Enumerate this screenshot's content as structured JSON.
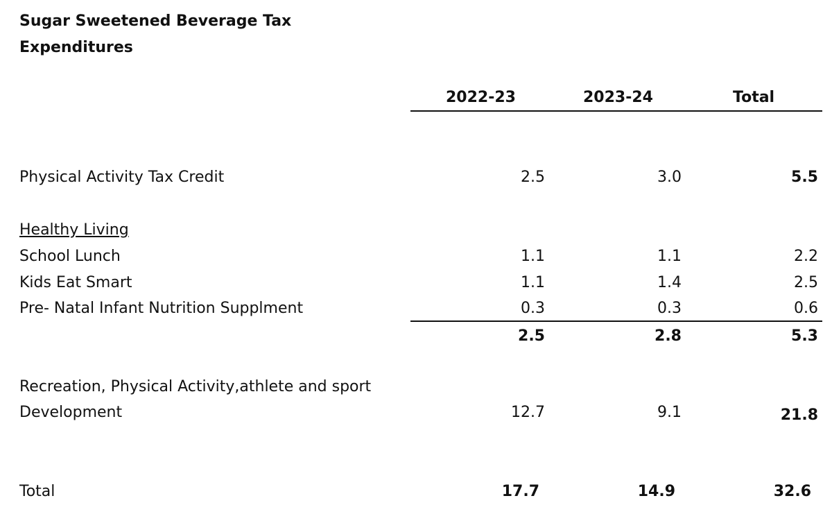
{
  "title": {
    "line1": "Sugar Sweetened Beverage Tax",
    "line2": "Expenditures"
  },
  "columns": [
    "2022-23",
    "2023-24",
    "Total"
  ],
  "rows": {
    "physical_activity": {
      "label": "Physical Activity Tax Credit",
      "v1": "2.5",
      "v2": "3.0",
      "total": "5.5"
    },
    "healthy_living_heading": "Healthy Living",
    "school_lunch": {
      "label": "School Lunch",
      "v1": "1.1",
      "v2": "1.1",
      "total": "2.2"
    },
    "kids_eat_smart": {
      "label": "Kids Eat Smart",
      "v1": "1.1",
      "v2": "1.4",
      "total": "2.5"
    },
    "prenatal": {
      "label": "Pre- Natal Infant Nutrition Supplment",
      "v1": "0.3",
      "v2": "0.3",
      "total": "0.6"
    },
    "healthy_subtotal": {
      "v1": "2.5",
      "v2": "2.8",
      "total": "5.3"
    },
    "recreation": {
      "label_line1": "Recreation, Physical Activity,athlete and sport",
      "label_line2": "Development",
      "v1": "12.7",
      "v2": "9.1",
      "total": "21.8"
    },
    "grand_total": {
      "label": "Total",
      "v1": "17.7",
      "v2": "14.9",
      "total": "32.6"
    }
  }
}
